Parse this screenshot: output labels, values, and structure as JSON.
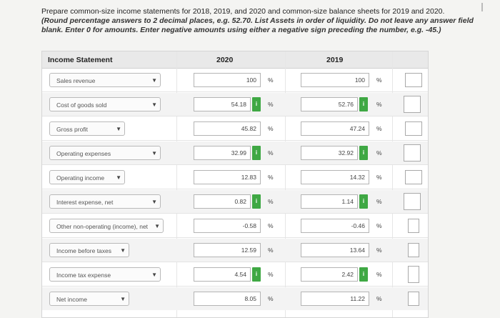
{
  "instructions": {
    "line1": "Prepare common-size income statements for 2018, 2019, and 2020 and common-size balance sheets for 2019 and 2020.",
    "line2": "(Round percentage answers to 2 decimal places, e.g. 52.70. List Assets in order of liquidity. Do not leave any answer field blank. Enter 0 for amounts. Enter negative amounts using either a negative sign preceding the number, e.g. -45.)"
  },
  "table": {
    "header": {
      "label": "Income Statement",
      "col2020": "2020",
      "col2019": "2019"
    },
    "rows": [
      {
        "label": "Sales revenue",
        "v2020": "100",
        "v2019": "100"
      },
      {
        "label": "Cost of goods sold",
        "v2020": "54.18",
        "v2019": "52.76"
      },
      {
        "label": "Gross profit",
        "v2020": "45.82",
        "v2019": "47.24"
      },
      {
        "label": "Operating expenses",
        "v2020": "32.99",
        "v2019": "32.92"
      },
      {
        "label": "Operating income",
        "v2020": "12.83",
        "v2019": "14.32"
      },
      {
        "label": "Interest expense, net",
        "v2020": "0.82",
        "v2019": "1.14"
      },
      {
        "label": "Other non-operating (income), net",
        "v2020": "-0.58",
        "v2019": "-0.46"
      },
      {
        "label": "Income before taxes",
        "v2020": "12.59",
        "v2019": "13.64"
      },
      {
        "label": "Income tax expense",
        "v2020": "4.54",
        "v2019": "2.42"
      },
      {
        "label": "Net income",
        "v2020": "8.05",
        "v2019": "11.22"
      }
    ],
    "percent_sign": "%",
    "info_glyph": "i",
    "info_color": "#3fa844"
  }
}
